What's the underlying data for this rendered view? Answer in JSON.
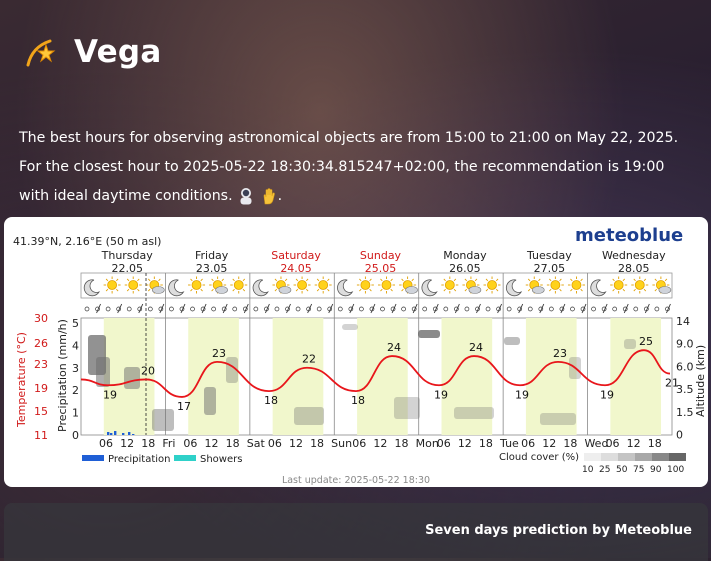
{
  "header": {
    "title": "Vega",
    "icon": "shooting-star-icon"
  },
  "recommendation": {
    "text": "The best hours for observing astronomical objects are from 15:00 to 21:00 on May 22, 2025. For the closest hour to 2025-05-22 18:30:34.815247+02:00, the recommendation is 19:00 with ideal daytime conditions.",
    "emoji_1": "astronaut-icon",
    "emoji_2": "hand-icon",
    "trailing": "."
  },
  "meteogram": {
    "location": "41.39°N, 2.16°E (50 m asl)",
    "brand": "meteoblue",
    "last_update": "Last update: 2025-05-22 18:30",
    "days": [
      {
        "name": "Thursday",
        "date": "22.05",
        "weekend": false
      },
      {
        "name": "Friday",
        "date": "23.05",
        "weekend": false
      },
      {
        "name": "Saturday",
        "date": "24.05",
        "weekend": true
      },
      {
        "name": "Sunday",
        "date": "25.05",
        "weekend": true
      },
      {
        "name": "Monday",
        "date": "26.05",
        "weekend": false
      },
      {
        "name": "Tuesday",
        "date": "27.05",
        "weekend": false
      },
      {
        "name": "Wednesday",
        "date": "28.05",
        "weekend": false
      }
    ],
    "x_ticks": [
      "06",
      "12",
      "18",
      "Fri",
      "06",
      "12",
      "18",
      "Sat",
      "06",
      "12",
      "18",
      "Sun",
      "06",
      "12",
      "18",
      "Mon",
      "06",
      "12",
      "18",
      "Tue",
      "06",
      "12",
      "18",
      "Wed",
      "06",
      "12",
      "18"
    ],
    "temp_axis": {
      "label": "Temperature (°C)",
      "ticks": [
        "30",
        "26",
        "23",
        "19",
        "15",
        "11"
      ]
    },
    "precip_axis": {
      "label": "Precipitation (mm/h)",
      "ticks": [
        "5",
        "4",
        "3",
        "2",
        "1",
        "0"
      ]
    },
    "alt_axis": {
      "label": "Altitude (km)",
      "ticks": [
        "14",
        "9.0",
        "6.0",
        "3.5",
        "1.5",
        "0"
      ]
    },
    "temp_labels": [
      "19",
      "20",
      "17",
      "23",
      "18",
      "22",
      "18",
      "24",
      "19",
      "24",
      "19",
      "23",
      "19",
      "25",
      "21"
    ],
    "legend": {
      "precipitation": "Precipitation",
      "showers": "Showers",
      "cloud_cover": "Cloud cover (%)",
      "cloud_ticks": [
        "10",
        "25",
        "50",
        "75",
        "90",
        "100"
      ]
    },
    "colors": {
      "temp_line": "#e8161b",
      "day_band": "#f1f7cc",
      "precip": "#1f5fd6",
      "showers": "#2fd1c9",
      "weekend": "#d11a1a",
      "brand": "#1d3f8f"
    }
  },
  "chart_data": {
    "type": "line",
    "title": "",
    "xlabel": "",
    "ylabel": "Temperature (°C)",
    "ylim": [
      11,
      30
    ],
    "series": [
      {
        "values": [
          19,
          20,
          17,
          23,
          18,
          22,
          18,
          24,
          19,
          24,
          19,
          23,
          19,
          25,
          21
        ]
      }
    ]
  },
  "footer": {
    "text": "Seven days prediction by Meteoblue"
  }
}
